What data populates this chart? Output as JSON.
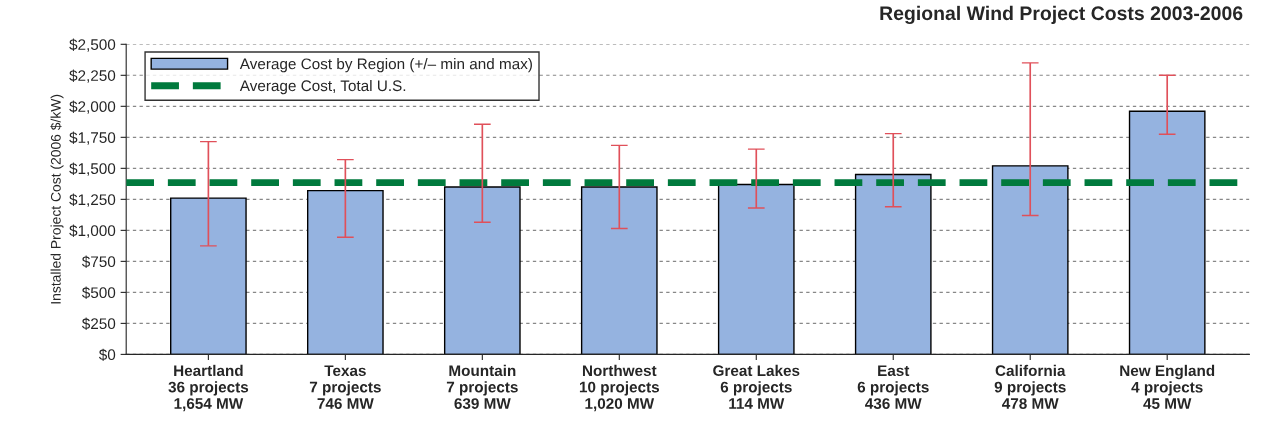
{
  "chart_data": {
    "type": "bar",
    "title": "Regional Wind Project Costs 2003-2006",
    "ylabel": "Installed Project Cost (2006 $/kW)",
    "categories": [
      "Heartland\n36 projects\n1,654 MW",
      "Texas\n7 projects\n746 MW",
      "Mountain\n7 projects\n639 MW",
      "Northwest\n10 projects\n1,020 MW",
      "Great Lakes\n6 projects\n114 MW",
      "East\n6 projects\n436 MW",
      "California\n9 projects\n478 MW",
      "New England\n4 projects\n45 MW"
    ],
    "series": [
      {
        "name": "Average Cost by Region (+/– min and max)",
        "color": "#95b3e0",
        "values": [
          1260,
          1320,
          1350,
          1350,
          1370,
          1450,
          1520,
          1960
        ],
        "errors": [
          [
            875,
            1715
          ],
          [
            945,
            1570
          ],
          [
            1065,
            1855
          ],
          [
            1015,
            1685
          ],
          [
            1180,
            1655
          ],
          [
            1190,
            1780
          ],
          [
            1120,
            2350
          ],
          [
            1775,
            2250
          ]
        ]
      }
    ],
    "ref_lines": [
      {
        "axis": "y",
        "value": 1385,
        "label": "Average Cost, Total U.S.",
        "color": "#007a3d",
        "line_style": "dashed"
      }
    ],
    "ylim": [
      0,
      2500
    ],
    "yticks": [
      {
        "value": 0,
        "label": "$0"
      },
      {
        "value": 250,
        "label": "$250"
      },
      {
        "value": 500,
        "label": "$500"
      },
      {
        "value": 750,
        "label": "$750"
      },
      {
        "value": 1000,
        "label": "$1,000"
      },
      {
        "value": 1250,
        "label": "$1,250"
      },
      {
        "value": 1500,
        "label": "$1,500"
      },
      {
        "value": 1750,
        "label": "$1,750"
      },
      {
        "value": 2000,
        "label": "$2,000"
      },
      {
        "value": 2250,
        "label": "$2,250"
      },
      {
        "value": 2500,
        "label": "$2,500"
      }
    ],
    "grid": "y",
    "legend": "top left"
  }
}
